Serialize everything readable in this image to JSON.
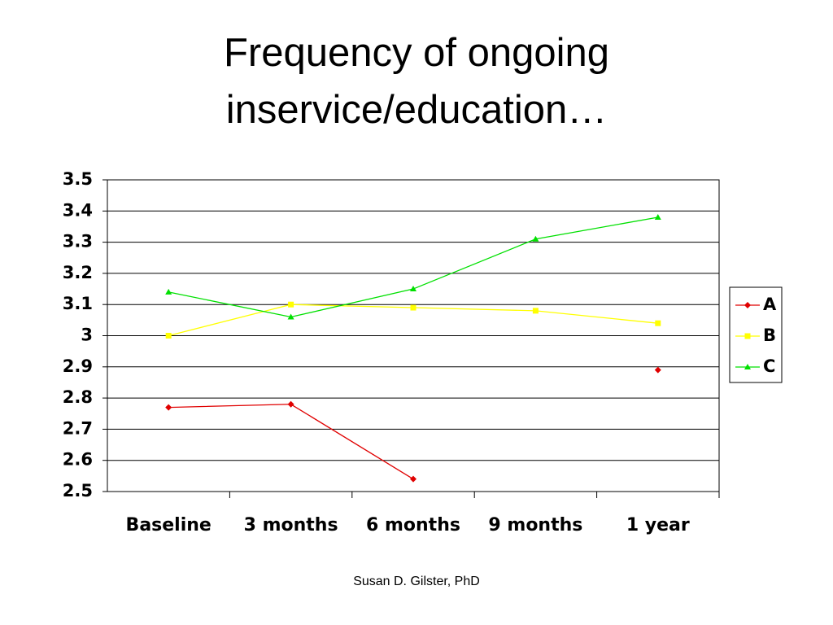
{
  "chart_data": {
    "type": "line",
    "title": "Frequency of ongoing inservice/education…",
    "footer": "Susan D. Gilster, PhD",
    "categories": [
      "Baseline",
      "3 months",
      "6 months",
      "9 months",
      "1 year"
    ],
    "series": [
      {
        "name": "A",
        "color": "#e00000",
        "marker": "diamond",
        "values": [
          2.77,
          2.78,
          2.54,
          null,
          2.89
        ]
      },
      {
        "name": "B",
        "color": "#ffff00",
        "marker": "square",
        "values": [
          3.0,
          3.1,
          3.09,
          3.08,
          3.04
        ]
      },
      {
        "name": "C",
        "color": "#00e000",
        "marker": "triangle",
        "values": [
          3.14,
          3.06,
          3.15,
          3.31,
          3.38
        ]
      }
    ],
    "ylim": [
      2.5,
      3.5
    ],
    "yticks": [
      2.5,
      2.6,
      2.7,
      2.8,
      2.9,
      3,
      3.1,
      3.2,
      3.3,
      3.4,
      3.5
    ],
    "grid": true,
    "legend": "right"
  }
}
